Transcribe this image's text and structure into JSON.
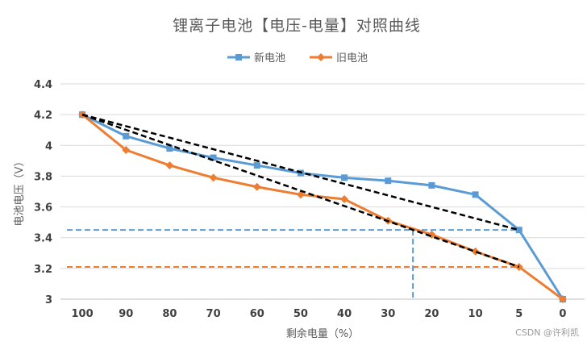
{
  "chart_data": {
    "type": "line",
    "title": "锂离子电池【电压-电量】对照曲线",
    "xlabel": "剩余电量（%）",
    "ylabel": "电池电压（V）",
    "categories": [
      "100",
      "90",
      "80",
      "70",
      "60",
      "50",
      "40",
      "30",
      "20",
      "10",
      "5",
      "0"
    ],
    "ylim": [
      3,
      4.4
    ],
    "yticks": [
      "3",
      "3.2",
      "3.4",
      "3.6",
      "3.8",
      "4",
      "4.2",
      "4.4"
    ],
    "grid": true,
    "legend": "top-center",
    "series": [
      {
        "name": "新电池",
        "color": "#5b9bd5",
        "marker": "square",
        "values": [
          4.2,
          4.06,
          3.98,
          3.92,
          3.87,
          3.82,
          3.79,
          3.77,
          3.74,
          3.68,
          3.45,
          3.0
        ]
      },
      {
        "name": "旧电池",
        "color": "#ed7d31",
        "marker": "diamond",
        "values": [
          4.2,
          3.97,
          3.87,
          3.79,
          3.73,
          3.68,
          3.65,
          3.51,
          3.42,
          3.31,
          3.21,
          3.0
        ]
      }
    ],
    "annotations": {
      "trend_lines": [
        {
          "from": [
            "100",
            4.2
          ],
          "to": [
            "5",
            3.45
          ],
          "color": "#000000",
          "style": "dashed"
        },
        {
          "from": [
            "100",
            4.2
          ],
          "to": [
            "5",
            3.21
          ],
          "color": "#000000",
          "style": "dashed"
        }
      ],
      "reference_lines": [
        {
          "type": "horizontal",
          "y": 3.45,
          "color": "#5b9bd5",
          "style": "dashed"
        },
        {
          "type": "horizontal",
          "y": 3.21,
          "color": "#ed7d31",
          "style": "dashed"
        },
        {
          "type": "vertical",
          "x_between": [
            "30",
            "20"
          ],
          "x_fraction": 0.57,
          "from_y": 3.0,
          "to_y": 3.45,
          "color": "#5b9bd5",
          "style": "dashed"
        }
      ]
    }
  },
  "watermark": "CSDN @许利凯"
}
